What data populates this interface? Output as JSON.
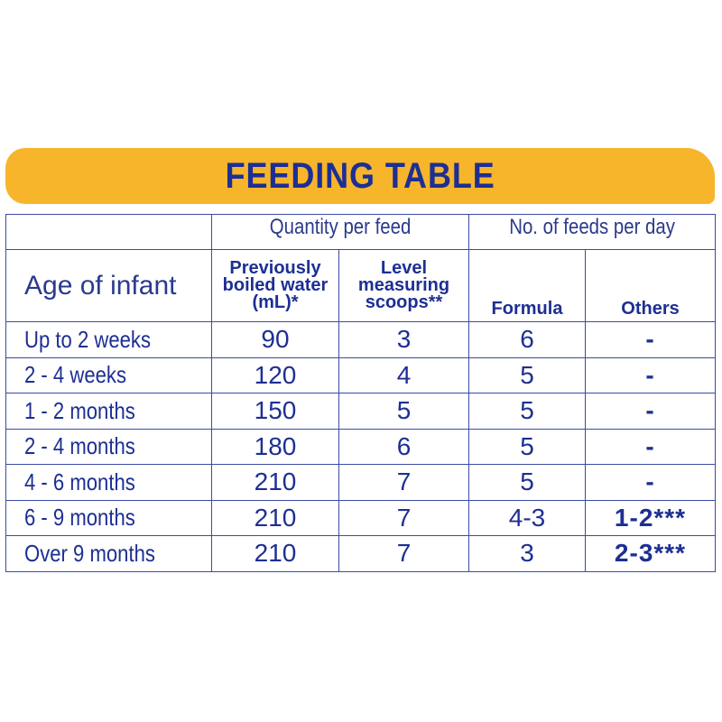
{
  "title": "FEEDING TABLE",
  "headers": {
    "quantity_group": "Quantity per feed",
    "feeds_group": "No. of feeds per day",
    "age": "Age of infant",
    "water_line1": "Previously",
    "water_line2": "boiled water",
    "water_line3": "(mL)*",
    "scoops_line1": "Level",
    "scoops_line2": "measuring",
    "scoops_line3": "scoops**",
    "formula": "Formula",
    "others": "Others"
  },
  "rows": [
    {
      "age": "Up to 2 weeks",
      "water": "90",
      "scoops": "3",
      "formula": "6",
      "others": "-"
    },
    {
      "age": "2 - 4 weeks",
      "water": "120",
      "scoops": "4",
      "formula": "5",
      "others": "-"
    },
    {
      "age": "1 - 2 months",
      "water": "150",
      "scoops": "5",
      "formula": "5",
      "others": "-"
    },
    {
      "age": "2 - 4 months",
      "water": "180",
      "scoops": "6",
      "formula": "5",
      "others": "-"
    },
    {
      "age": "4 - 6 months",
      "water": "210",
      "scoops": "7",
      "formula": "5",
      "others": "-"
    },
    {
      "age": "6 - 9 months",
      "water": "210",
      "scoops": "7",
      "formula": "4-3",
      "others": "1-2***"
    },
    {
      "age": "Over 9 months",
      "water": "210",
      "scoops": "7",
      "formula": "3",
      "others": "2-3***"
    }
  ],
  "colors": {
    "banner": "#f7b52c",
    "text": "#1d2f93",
    "border": "#3b4ba3"
  }
}
